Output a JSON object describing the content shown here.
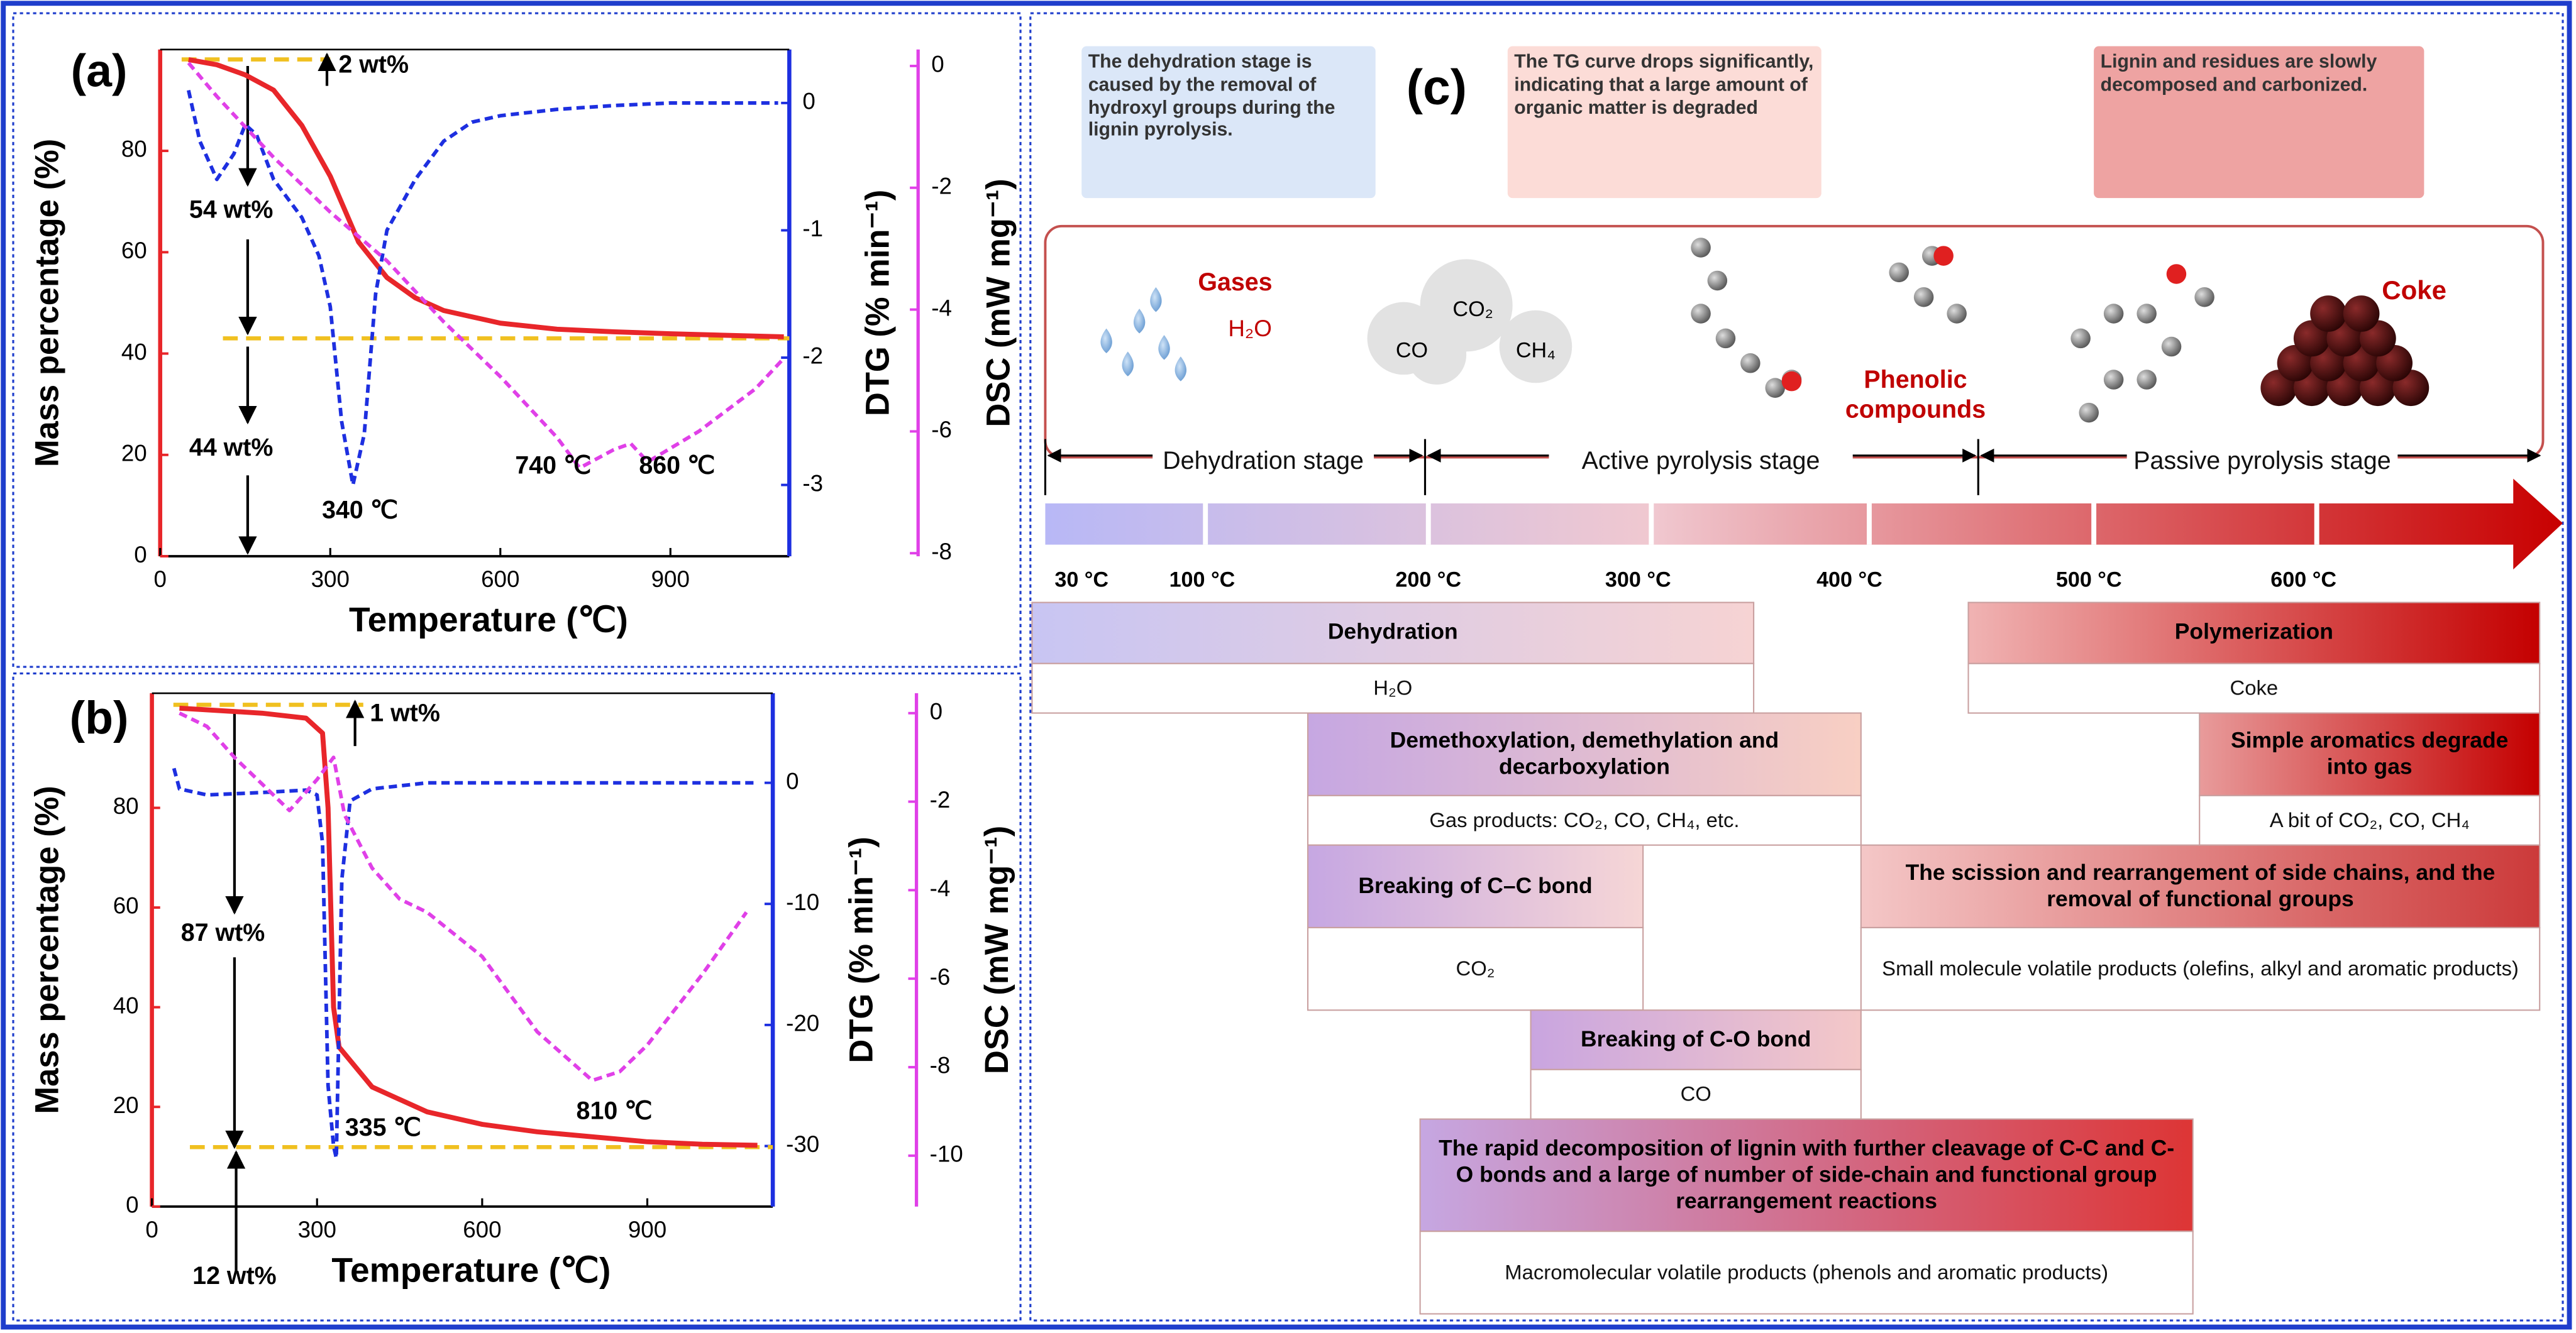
{
  "chart_data": [
    {
      "type": "line",
      "label": "(a)",
      "xlabel": "Temperature (℃)",
      "ylabel": "Mass percentage (%)",
      "y2label": "DTG (% min⁻¹)",
      "y3label": "DSC (mW mg⁻¹)",
      "xlim": [
        0,
        1100
      ],
      "xticks": [
        0,
        300,
        600,
        900
      ],
      "ylim": [
        0,
        100
      ],
      "yticks": [
        0,
        20,
        40,
        60,
        80
      ],
      "y2lim": [
        -3.56,
        0.42
      ],
      "y2ticks": [
        -3,
        -2,
        -1,
        0
      ],
      "y3lim": [
        -8.05,
        0.27
      ],
      "y3ticks": [
        -8,
        -6,
        -4,
        -2,
        0
      ],
      "annotations": [
        "2 wt%",
        "54 wt%",
        "44 wt%",
        "340 ℃",
        "740 ℃",
        "860 ℃"
      ],
      "series": [
        {
          "color": "#e8262a",
          "axis": "y",
          "dash": false,
          "x": [
            50,
            100,
            150,
            200,
            250,
            300,
            350,
            400,
            450,
            500,
            600,
            700,
            800,
            900,
            1000,
            1100
          ],
          "values": [
            98,
            97,
            95,
            92,
            85,
            75,
            62,
            55,
            51,
            48.5,
            46,
            44.8,
            44.3,
            43.9,
            43.6,
            43.3
          ]
        },
        {
          "color": "#1d2fe0",
          "axis": "y2",
          "dash": true,
          "x": [
            50,
            70,
            100,
            130,
            150,
            170,
            200,
            250,
            280,
            300,
            320,
            340,
            360,
            380,
            400,
            450,
            500,
            550,
            600,
            700,
            800,
            900,
            1000,
            1090
          ],
          "values": [
            0.1,
            -0.3,
            -0.6,
            -0.4,
            -0.17,
            -0.25,
            -0.6,
            -0.9,
            -1.2,
            -1.6,
            -2.5,
            -3.0,
            -2.6,
            -1.5,
            -1.0,
            -0.6,
            -0.3,
            -0.15,
            -0.1,
            -0.05,
            -0.02,
            0,
            0,
            0
          ]
        },
        {
          "color": "#e040e8",
          "axis": "y3",
          "dash": true,
          "x": [
            50,
            100,
            200,
            300,
            400,
            500,
            600,
            700,
            740,
            800,
            830,
            860,
            950,
            1050,
            1100
          ],
          "values": [
            0.05,
            -0.5,
            -1.5,
            -2.4,
            -3.2,
            -4.2,
            -5.1,
            -6.1,
            -6.6,
            -6.3,
            -6.2,
            -6.5,
            -6.0,
            -5.3,
            -4.8
          ]
        }
      ]
    },
    {
      "type": "line",
      "label": "(b)",
      "xlabel": "Temperature (℃)",
      "ylabel": "Mass percentage (%)",
      "y2label": "DTG (% min⁻¹)",
      "y3label": "DSC (mW mg⁻¹)",
      "xlim": [
        0,
        1100
      ],
      "xticks": [
        0,
        300,
        600,
        900
      ],
      "ylim": [
        0,
        103
      ],
      "yticks": [
        0,
        20,
        40,
        60,
        80
      ],
      "y2lim": [
        -35,
        7.4
      ],
      "y2ticks": [
        -30,
        -20,
        -10,
        0
      ],
      "y3lim": [
        -11.15,
        0.45
      ],
      "y3ticks": [
        -10,
        -8,
        -6,
        -4,
        -2,
        0
      ],
      "annotations": [
        "1 wt%",
        "87 wt%",
        "12 wt%",
        "335 ℃",
        "810 ℃"
      ],
      "series": [
        {
          "color": "#e8262a",
          "axis": "y",
          "dash": false,
          "x": [
            50,
            200,
            280,
            310,
            320,
            330,
            340,
            400,
            500,
            600,
            700,
            800,
            900,
            1000,
            1100
          ],
          "values": [
            100,
            99,
            98,
            95,
            80,
            40,
            32,
            24,
            19,
            16.5,
            15,
            14,
            13,
            12.5,
            12.3
          ]
        },
        {
          "color": "#1d2fe0",
          "axis": "y2",
          "dash": true,
          "x": [
            40,
            50,
            100,
            200,
            280,
            300,
            310,
            320,
            330,
            335,
            345,
            360,
            400,
            500,
            600,
            800,
            1000,
            1100
          ],
          "values": [
            1.2,
            -0.5,
            -1,
            -0.8,
            -0.6,
            -1,
            -5,
            -25,
            -30,
            -31,
            -8,
            -1.5,
            -0.5,
            0,
            0,
            0,
            0,
            0
          ]
        },
        {
          "color": "#e040e8",
          "axis": "y3",
          "dash": true,
          "x": [
            50,
            100,
            150,
            200,
            250,
            300,
            330,
            350,
            400,
            450,
            500,
            600,
            700,
            800,
            850,
            900,
            1000,
            1080
          ],
          "values": [
            0,
            -0.3,
            -1,
            -1.6,
            -2.2,
            -1.5,
            -1,
            -2.3,
            -3.5,
            -4.2,
            -4.5,
            -5.5,
            -7.2,
            -8.3,
            -8.1,
            -7.5,
            -5.9,
            -4.5
          ]
        }
      ]
    }
  ],
  "diagram": {
    "label": "(c)",
    "notes": [
      "The dehydration stage is caused by the removal of hydroxyl groups during the lignin pyrolysis.",
      "The TG curve drops significantly, indicating that a large amount of organic matter is degraded",
      "Lignin and residues are slowly decomposed and carbonized."
    ],
    "species": [
      "H₂O",
      "Gases",
      "CO₂",
      "CO",
      "CH₄",
      "Phenolic compounds",
      "Coke"
    ],
    "stages": [
      "Dehydration stage",
      "Active pyrolysis stage",
      "Passive pyrolysis stage"
    ],
    "temperatures": [
      "30 °C",
      "100 °C",
      "200 °C",
      "300 °C",
      "400 °C",
      "500 °C",
      "600 °C"
    ],
    "reactions": [
      {
        "title": "Dehydration",
        "product": "H₂O"
      },
      {
        "title": "Polymerization",
        "product": "Coke"
      },
      {
        "title": "Demethoxylation, demethylation and decarboxylation",
        "product": "Gas products:  CO₂, CO, CH₄, etc."
      },
      {
        "title": "Simple aromatics degrade into gas",
        "product": "A bit of CO₂, CO, CH₄"
      },
      {
        "title": "Breaking of C–C bond",
        "product": "CO₂"
      },
      {
        "title": "The scission and rearrangement of side chains, and the removal of functional groups",
        "product": "Small molecule volatile products (olefins, alkyl and aromatic products)"
      },
      {
        "title": "Breaking of C-O bond",
        "product": "CO"
      },
      {
        "title": "The rapid decomposition of lignin with further cleavage of C-C and C-O bonds and a large of number of side-chain and functional group rearrangement reactions",
        "product": "Macromolecular volatile products (phenols and aromatic products)"
      }
    ]
  }
}
